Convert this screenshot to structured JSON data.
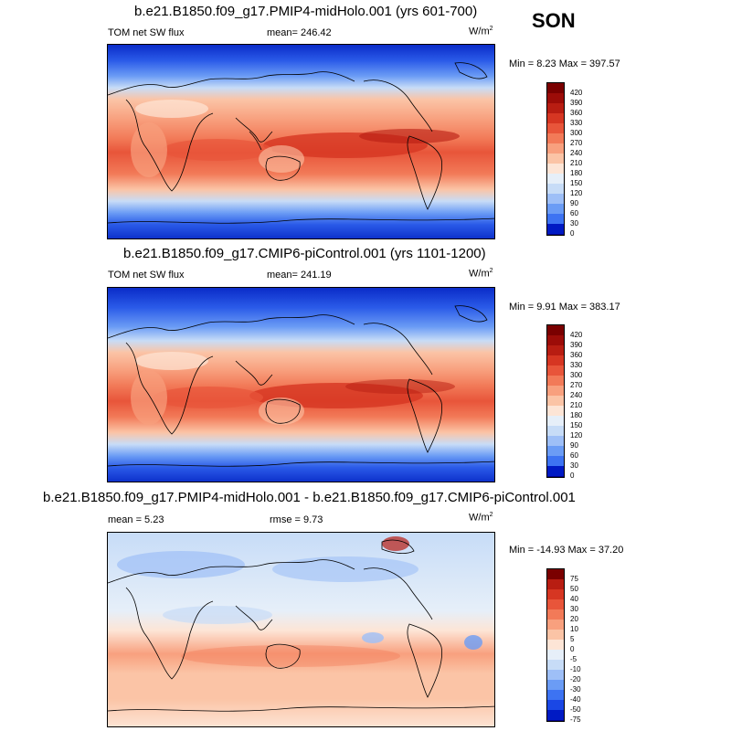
{
  "season": "SON",
  "colors": {
    "abs_scale": [
      "#00008c",
      "#001ac4",
      "#1a47e5",
      "#3d73f2",
      "#6b9cf5",
      "#9ebff7",
      "#c7dcf7",
      "#e6eff9",
      "#fde5d6",
      "#fbc4a6",
      "#f8a07e",
      "#f27a58",
      "#e8553a",
      "#d63622",
      "#b81d12",
      "#9c0c08",
      "#7a0000"
    ],
    "diff_scale": [
      "#00008c",
      "#001ac4",
      "#1a47e5",
      "#3d73f2",
      "#6b9cf5",
      "#9ebff7",
      "#c7dcf7",
      "#e6eff9",
      "#fde5d6",
      "#fbc4a6",
      "#f8a07e",
      "#f27a58",
      "#e8553a",
      "#d63622",
      "#b81d12",
      "#7a0000"
    ]
  },
  "panels": [
    {
      "title": "b.e21.B1850.f09_g17.PMIP4-midHolo.001 (yrs 601-700)",
      "variable": "TOM net SW flux",
      "mean_label": "mean= 246.42",
      "unit": "W/m",
      "unit_sup": "2",
      "minmax": "Min =   8.23 Max = 397.57",
      "colorbar_ticks": [
        "420",
        "390",
        "360",
        "330",
        "300",
        "270",
        "240",
        "210",
        "180",
        "150",
        "120",
        "90",
        "60",
        "30",
        "0"
      ]
    },
    {
      "title": "b.e21.B1850.f09_g17.CMIP6-piControl.001 (yrs 1101-1200)",
      "variable": "TOM net SW flux",
      "mean_label": "mean= 241.19",
      "unit": "W/m",
      "unit_sup": "2",
      "minmax": "Min =   9.91 Max = 383.17",
      "colorbar_ticks": [
        "420",
        "390",
        "360",
        "330",
        "300",
        "270",
        "240",
        "210",
        "180",
        "150",
        "120",
        "90",
        "60",
        "30",
        "0"
      ]
    },
    {
      "title": "b.e21.B1850.f09_g17.PMIP4-midHolo.001 - b.e21.B1850.f09_g17.CMIP6-piControl.001",
      "mean_label": "mean =   5.23",
      "rmse_label": "rmse =   9.73",
      "unit": "W/m",
      "unit_sup": "2",
      "minmax": "Min = -14.93 Max =  37.20",
      "colorbar_ticks": [
        "75",
        "50",
        "40",
        "30",
        "20",
        "10",
        "5",
        "0",
        "-5",
        "-10",
        "-20",
        "-30",
        "-40",
        "-50",
        "-75"
      ]
    }
  ]
}
